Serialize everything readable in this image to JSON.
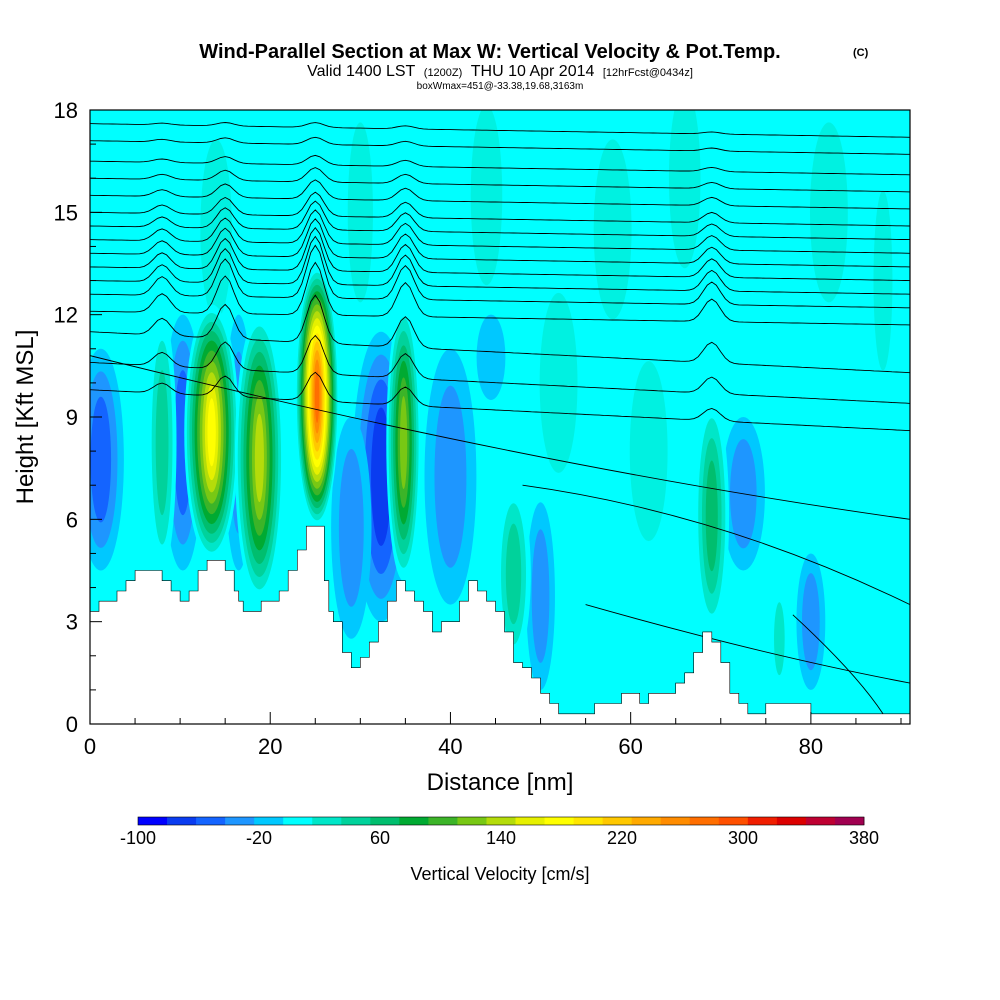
{
  "chart_data": {
    "type": "heatmap",
    "title": "Wind-Parallel Section at Max W: Vertical Velocity & Pot.Temp.",
    "title_mark": "(C)",
    "subtitle_parts": [
      "Valid 1400 LST",
      "(1200Z)",
      "THU 10 Apr 2014",
      "[12hrFcst@0434z]"
    ],
    "subtitle2": "boxWmax=451@-33.38,19.68,3163m",
    "xlabel": "Distance [nm]",
    "ylabel": "Height [Kft MSL]",
    "xlim": [
      0,
      91
    ],
    "ylim": [
      0,
      18
    ],
    "x_ticks": [
      0,
      20,
      40,
      60,
      80
    ],
    "y_ticks": [
      0,
      3,
      6,
      9,
      12,
      15,
      18
    ],
    "colorbar": {
      "label": "Vertical Velocity [cm/s]",
      "tick_labels": [
        "-100",
        "-20",
        "60",
        "140",
        "220",
        "300",
        "380"
      ],
      "tick_values": [
        -100,
        -20,
        60,
        140,
        220,
        300,
        380
      ],
      "min": -100,
      "max": 380,
      "step": 20,
      "colors": [
        "#0000ff",
        "#0a3cf0",
        "#1464ff",
        "#1e96ff",
        "#00c8ff",
        "#00ffff",
        "#00e6c8",
        "#00d29b",
        "#00be6e",
        "#00aa32",
        "#3cb428",
        "#78c814",
        "#b4dc0a",
        "#e6f000",
        "#ffff00",
        "#ffe600",
        "#ffc800",
        "#ffaa00",
        "#ff8c00",
        "#ff6e00",
        "#ff5000",
        "#f01e00",
        "#dc0000",
        "#be0032",
        "#a00050"
      ]
    },
    "terrain_kft": [
      [
        0,
        3.3
      ],
      [
        1,
        3.3
      ],
      [
        1,
        3.6
      ],
      [
        3,
        3.6
      ],
      [
        3,
        3.9
      ],
      [
        4,
        3.9
      ],
      [
        4,
        4.2
      ],
      [
        5,
        4.2
      ],
      [
        5,
        4.5
      ],
      [
        8,
        4.5
      ],
      [
        8,
        4.2
      ],
      [
        9,
        4.2
      ],
      [
        9,
        3.9
      ],
      [
        10,
        3.9
      ],
      [
        10,
        3.6
      ],
      [
        11,
        3.6
      ],
      [
        11,
        3.9
      ],
      [
        12,
        3.9
      ],
      [
        12,
        4.5
      ],
      [
        13,
        4.5
      ],
      [
        13,
        4.8
      ],
      [
        15,
        4.8
      ],
      [
        15,
        4.5
      ],
      [
        16,
        4.5
      ],
      [
        16,
        3.9
      ],
      [
        16.5,
        3.9
      ],
      [
        16.5,
        3.6
      ],
      [
        17,
        3.6
      ],
      [
        17,
        3.3
      ],
      [
        19,
        3.3
      ],
      [
        19,
        3.6
      ],
      [
        21,
        3.6
      ],
      [
        21,
        3.9
      ],
      [
        22,
        3.9
      ],
      [
        22,
        4.5
      ],
      [
        23,
        4.5
      ],
      [
        23,
        5.1
      ],
      [
        24,
        5.1
      ],
      [
        24,
        5.8
      ],
      [
        26,
        5.8
      ],
      [
        26,
        4.2
      ],
      [
        26.5,
        4.2
      ],
      [
        26.5,
        3.3
      ],
      [
        27,
        3.3
      ],
      [
        27,
        3.0
      ],
      [
        28,
        3.0
      ],
      [
        28,
        2.1
      ],
      [
        29,
        2.1
      ],
      [
        29,
        1.65
      ],
      [
        30,
        1.65
      ],
      [
        30,
        1.95
      ],
      [
        31,
        1.95
      ],
      [
        31,
        2.4
      ],
      [
        32,
        2.4
      ],
      [
        32,
        3.0
      ],
      [
        33,
        3.0
      ],
      [
        33,
        3.6
      ],
      [
        34,
        3.6
      ],
      [
        34,
        4.2
      ],
      [
        35,
        4.2
      ],
      [
        35,
        3.9
      ],
      [
        36,
        3.9
      ],
      [
        36,
        3.6
      ],
      [
        37,
        3.6
      ],
      [
        37,
        3.3
      ],
      [
        38,
        3.3
      ],
      [
        38,
        2.7
      ],
      [
        39,
        2.7
      ],
      [
        39,
        3.0
      ],
      [
        41,
        3.0
      ],
      [
        41,
        3.6
      ],
      [
        42,
        3.6
      ],
      [
        42,
        4.2
      ],
      [
        43,
        4.2
      ],
      [
        43,
        3.9
      ],
      [
        44,
        3.9
      ],
      [
        44,
        3.6
      ],
      [
        45,
        3.6
      ],
      [
        45,
        3.3
      ],
      [
        46,
        3.3
      ],
      [
        46,
        2.7
      ],
      [
        47,
        2.7
      ],
      [
        47,
        1.8
      ],
      [
        48,
        1.8
      ],
      [
        48,
        1.65
      ],
      [
        49,
        1.65
      ],
      [
        49,
        1.35
      ],
      [
        50,
        1.35
      ],
      [
        50,
        0.9
      ],
      [
        51,
        0.9
      ],
      [
        51,
        0.6
      ],
      [
        52,
        0.6
      ],
      [
        52,
        0.3
      ],
      [
        56,
        0.3
      ],
      [
        56,
        0.6
      ],
      [
        59,
        0.6
      ],
      [
        59,
        0.9
      ],
      [
        61,
        0.9
      ],
      [
        61,
        0.6
      ],
      [
        62,
        0.6
      ],
      [
        62,
        0.9
      ],
      [
        65,
        0.9
      ],
      [
        65,
        1.2
      ],
      [
        66,
        1.2
      ],
      [
        66,
        1.5
      ],
      [
        67,
        1.5
      ],
      [
        67,
        2.1
      ],
      [
        68,
        2.1
      ],
      [
        68,
        2.7
      ],
      [
        69,
        2.7
      ],
      [
        69,
        2.4
      ],
      [
        70,
        2.4
      ],
      [
        70,
        1.8
      ],
      [
        71,
        1.8
      ],
      [
        71,
        0.9
      ],
      [
        72,
        0.9
      ],
      [
        72,
        0.6
      ],
      [
        73,
        0.6
      ],
      [
        73,
        0.3
      ],
      [
        75,
        0.3
      ],
      [
        75,
        0.6
      ],
      [
        80,
        0.6
      ],
      [
        80,
        0.3
      ],
      [
        91,
        0.3
      ],
      [
        91,
        0
      ]
    ],
    "updraft_cells": [
      {
        "x": 8.0,
        "w": 1.0,
        "y0": 4.5,
        "y1": 12.0,
        "peak_cm_s": 60
      },
      {
        "x": 13.5,
        "w": 1.9,
        "y0": 4.8,
        "y1": 12.3,
        "peak_cm_s": 200
      },
      {
        "x": 18.8,
        "w": 1.7,
        "y0": 3.6,
        "y1": 12.0,
        "peak_cm_s": 150
      },
      {
        "x": 25.2,
        "w": 1.5,
        "y0": 5.8,
        "y1": 13.4,
        "peak_cm_s": 300
      },
      {
        "x": 34.8,
        "w": 1.2,
        "y0": 4.2,
        "y1": 12.3,
        "peak_cm_s": 130
      },
      {
        "x": 69.0,
        "w": 1.2,
        "y0": 2.7,
        "y1": 9.5,
        "peak_cm_s": 80
      },
      {
        "x": 47.0,
        "w": 1.2,
        "y0": 1.8,
        "y1": 7.0,
        "peak_cm_s": 50
      },
      {
        "x": 76.5,
        "w": 0.6,
        "y0": 1.0,
        "y1": 4.0,
        "peak_cm_s": 30
      },
      {
        "x": 88.5,
        "w": 1.0,
        "y0": 0.5,
        "y1": 3.5,
        "peak_cm_s": 20
      }
    ],
    "downdraft_cells": [
      {
        "x": 1.2,
        "w": 1.6,
        "y0": 4.5,
        "y1": 11.0,
        "peak_cm_s": -60
      },
      {
        "x": 10.3,
        "w": 1.4,
        "y0": 4.5,
        "y1": 12.0,
        "peak_cm_s": -50
      },
      {
        "x": 16.5,
        "w": 1.0,
        "y0": 4.5,
        "y1": 12.0,
        "peak_cm_s": -40
      },
      {
        "x": 32.3,
        "w": 2.0,
        "y0": 3.0,
        "y1": 11.5,
        "peak_cm_s": -70
      },
      {
        "x": 29.0,
        "w": 1.4,
        "y0": 2.5,
        "y1": 9.0,
        "peak_cm_s": -40
      },
      {
        "x": 40.0,
        "w": 1.8,
        "y0": 3.5,
        "y1": 11.0,
        "peak_cm_s": -30
      },
      {
        "x": 50.0,
        "w": 1.0,
        "y0": 1.0,
        "y1": 6.5,
        "peak_cm_s": -30
      },
      {
        "x": 72.5,
        "w": 1.5,
        "y0": 4.5,
        "y1": 9.0,
        "peak_cm_s": -30
      },
      {
        "x": 80.0,
        "w": 1.0,
        "y0": 1.0,
        "y1": 5.0,
        "peak_cm_s": -30
      },
      {
        "x": 44.5,
        "w": 1.0,
        "y0": 9.5,
        "y1": 12.0,
        "peak_cm_s": -20
      }
    ],
    "isentropes": [
      {
        "label": "",
        "base_kft": 17.6,
        "bump": 0.1
      },
      {
        "label": "",
        "base_kft": 17.1,
        "bump": 0.15
      },
      {
        "label": "",
        "base_kft": 16.5,
        "bump": 0.2
      },
      {
        "label": "",
        "base_kft": 16.0,
        "bump": 0.3
      },
      {
        "label": "",
        "base_kft": 15.5,
        "bump": 0.4
      },
      {
        "label": "",
        "base_kft": 15.0,
        "bump": 0.5
      },
      {
        "label": "",
        "base_kft": 14.6,
        "bump": 0.6
      },
      {
        "label": "",
        "base_kft": 14.2,
        "bump": 0.7
      },
      {
        "label": "",
        "base_kft": 13.8,
        "bump": 0.8
      },
      {
        "label": "",
        "base_kft": 13.4,
        "bump": 0.9
      },
      {
        "label": "",
        "base_kft": 13.0,
        "bump": 1.0
      },
      {
        "label": "",
        "base_kft": 12.6,
        "bump": 1.1
      },
      {
        "label": "",
        "base_kft": 12.1,
        "bump": 1.1
      },
      {
        "label": "",
        "base_kft": 11.5,
        "bump": 1.0
      },
      {
        "label": "",
        "base_kft": 10.6,
        "bump": 0.8
      },
      {
        "label": "",
        "base_kft": 9.8,
        "bump": 0.6
      }
    ]
  }
}
